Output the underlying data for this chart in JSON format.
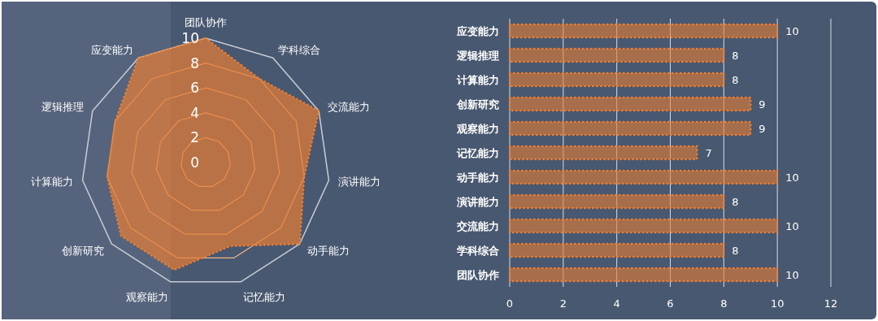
{
  "chart_data": [
    {
      "type": "radar",
      "categories": [
        "团队协作",
        "学科综合",
        "交流能力",
        "演讲能力",
        "动手能力",
        "记忆能力",
        "观察能力",
        "创新研究",
        "计算能力",
        "逻辑推理",
        "应变能力"
      ],
      "series": [
        {
          "color": "#e87d33",
          "values": [
            10,
            8,
            10,
            8,
            10,
            7,
            9,
            9,
            8,
            8,
            10
          ]
        }
      ],
      "ylim": [
        0,
        10
      ],
      "yticks": [
        0,
        2,
        4,
        6,
        8,
        10
      ],
      "line_style": "dotted"
    },
    {
      "type": "bar",
      "orientation": "horizontal",
      "categories": [
        "应变能力",
        "逻辑推理",
        "计算能力",
        "创新研究",
        "观察能力",
        "记忆能力",
        "动手能力",
        "演讲能力",
        "交流能力",
        "学科综合",
        "团队协作"
      ],
      "values": [
        10,
        8,
        8,
        9,
        9,
        7,
        10,
        8,
        10,
        8,
        10
      ],
      "color": "#e87d33",
      "xlim": [
        0,
        12
      ],
      "xticks": [
        0,
        2,
        4,
        6,
        8,
        10,
        12
      ],
      "grid": "x",
      "data_labels": true,
      "line_style": "dotted"
    }
  ]
}
